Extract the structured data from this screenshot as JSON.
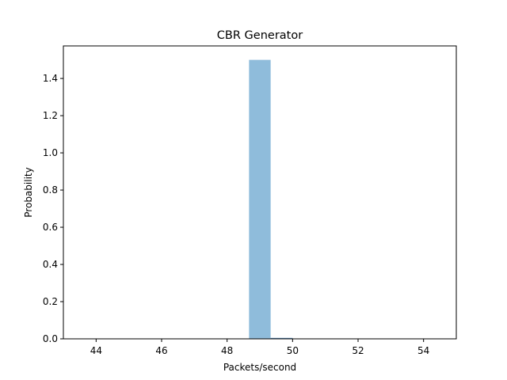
{
  "chart_data": {
    "type": "bar",
    "title": "CBR Generator",
    "xlabel": "Packets/second",
    "ylabel": "Probability",
    "xlim": [
      43.0,
      55.0
    ],
    "ylim": [
      0.0,
      1.575
    ],
    "x_ticks": [
      {
        "value": 44,
        "label": "44"
      },
      {
        "value": 46,
        "label": "46"
      },
      {
        "value": 48,
        "label": "48"
      },
      {
        "value": 50,
        "label": "50"
      },
      {
        "value": 52,
        "label": "52"
      },
      {
        "value": 54,
        "label": "54"
      }
    ],
    "y_ticks": [
      {
        "value": 0.0,
        "label": "0.0"
      },
      {
        "value": 0.2,
        "label": "0.2"
      },
      {
        "value": 0.4,
        "label": "0.4"
      },
      {
        "value": 0.6,
        "label": "0.6"
      },
      {
        "value": 0.8,
        "label": "0.8"
      },
      {
        "value": 1.0,
        "label": "1.0"
      },
      {
        "value": 1.2,
        "label": "1.2"
      },
      {
        "value": 1.4,
        "label": "1.4"
      }
    ],
    "bars": [
      {
        "x_start": 48.67,
        "x_end": 49.33,
        "value": 1.5
      },
      {
        "x_start": 49.33,
        "x_end": 50.0,
        "value": 0.005
      }
    ],
    "bar_color": "#8fbcdb",
    "small_bar_color": "#5b8fbf",
    "grid": false,
    "legend": "none"
  }
}
